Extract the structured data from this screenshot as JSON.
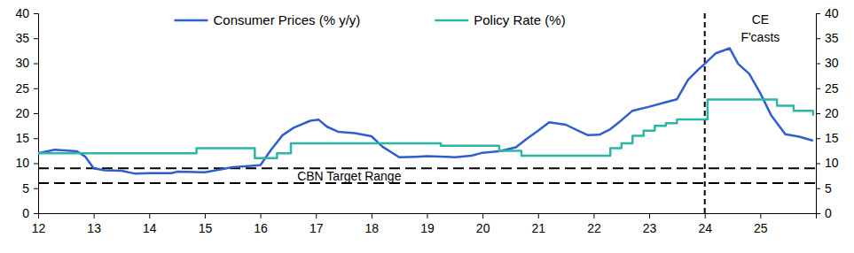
{
  "chart_data": {
    "type": "line",
    "legend": "top",
    "xlim": [
      2012,
      2026
    ],
    "xticks": [
      {
        "value": 2012,
        "label": "12"
      },
      {
        "value": 2013,
        "label": "13"
      },
      {
        "value": 2014,
        "label": "14"
      },
      {
        "value": 2015,
        "label": "15"
      },
      {
        "value": 2016,
        "label": "16"
      },
      {
        "value": 2017,
        "label": "17"
      },
      {
        "value": 2018,
        "label": "18"
      },
      {
        "value": 2019,
        "label": "19"
      },
      {
        "value": 2020,
        "label": "20"
      },
      {
        "value": 2021,
        "label": "21"
      },
      {
        "value": 2022,
        "label": "22"
      },
      {
        "value": 2023,
        "label": "23"
      },
      {
        "value": 2024,
        "label": "24"
      },
      {
        "value": 2025,
        "label": "25"
      }
    ],
    "ylim": [
      0,
      40
    ],
    "yticks": [
      0,
      5,
      10,
      15,
      20,
      25,
      30,
      35,
      40
    ],
    "y2lim": [
      0,
      40
    ],
    "y2ticks": [
      0,
      5,
      10,
      15,
      20,
      25,
      30,
      35,
      40
    ],
    "target_range": {
      "label": "CBN Target Range",
      "values": [
        6,
        9
      ]
    },
    "forecast": {
      "x": 2024,
      "label": [
        "CE",
        "F'casts"
      ]
    },
    "series": [
      {
        "name": "Consumer Prices (% y/y)",
        "color": "#2f5fcf",
        "x": [
          2012.0,
          2012.3,
          2012.7,
          2012.85,
          2013.0,
          2013.2,
          2013.5,
          2013.75,
          2014.0,
          2014.4,
          2014.5,
          2015.0,
          2015.5,
          2016.0,
          2016.2,
          2016.4,
          2016.6,
          2016.9,
          2017.05,
          2017.2,
          2017.4,
          2017.7,
          2018.0,
          2018.2,
          2018.5,
          2018.8,
          2019.0,
          2019.5,
          2019.8,
          2020.0,
          2020.3,
          2020.6,
          2020.8,
          2021.0,
          2021.2,
          2021.5,
          2021.7,
          2021.9,
          2022.1,
          2022.3,
          2022.5,
          2022.7,
          2023.0,
          2023.3,
          2023.5,
          2023.7,
          2023.9,
          2024.0,
          2024.2,
          2024.45,
          2024.6,
          2024.8,
          2025.0,
          2025.2,
          2025.45,
          2025.7,
          2025.95
        ],
        "values": [
          12.0,
          12.7,
          12.4,
          11.3,
          9.0,
          8.6,
          8.5,
          7.9,
          8.0,
          8.0,
          8.3,
          8.2,
          9.2,
          9.6,
          12.8,
          15.6,
          17.1,
          18.5,
          18.7,
          17.3,
          16.3,
          16.0,
          15.4,
          13.3,
          11.2,
          11.3,
          11.4,
          11.2,
          11.5,
          12.1,
          12.4,
          13.2,
          14.9,
          16.5,
          18.2,
          17.7,
          16.6,
          15.6,
          15.7,
          16.8,
          18.6,
          20.5,
          21.3,
          22.2,
          22.8,
          26.7,
          28.9,
          29.9,
          32.0,
          33.0,
          29.9,
          27.9,
          24.0,
          19.5,
          15.8,
          15.3,
          14.5
        ]
      },
      {
        "name": "Policy Rate (%)",
        "color": "#2db5a6",
        "axis": "y2",
        "x": [
          2012.0,
          2014.85,
          2015.9,
          2016.3,
          2016.55,
          2019.25,
          2020.3,
          2020.7,
          2022.3,
          2022.5,
          2022.7,
          2022.9,
          2023.1,
          2023.3,
          2023.5,
          2024.05,
          2025.3,
          2025.6,
          2025.95
        ],
        "values": [
          12,
          13,
          11,
          12,
          14,
          13.5,
          12.5,
          11.5,
          13,
          14,
          15.5,
          16.5,
          17.5,
          18,
          18.75,
          22.75,
          21.5,
          20.5,
          19.5
        ]
      }
    ]
  }
}
